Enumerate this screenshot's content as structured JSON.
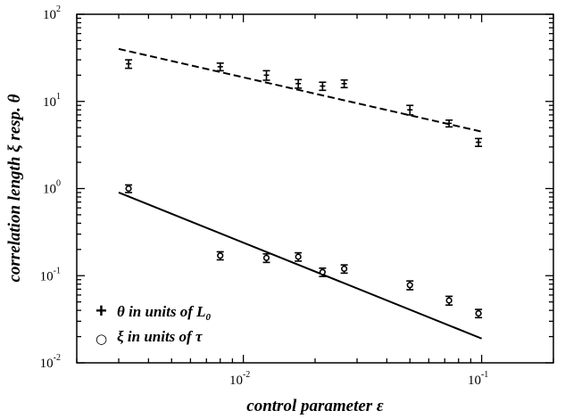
{
  "chart_data": {
    "type": "scatter",
    "xlabel": "control parameter ε",
    "ylabel": "correlation length ξ resp. θ",
    "xscale": "log",
    "yscale": "log",
    "xlim": [
      0.002,
      0.2
    ],
    "ylim": [
      0.01,
      100
    ],
    "x_ticks": [
      {
        "value": 0.01,
        "base": "10",
        "exp": "-2"
      },
      {
        "value": 0.1,
        "base": "10",
        "exp": "-1"
      }
    ],
    "y_ticks": [
      {
        "value": 0.01,
        "base": "10",
        "exp": "-2"
      },
      {
        "value": 0.1,
        "base": "10",
        "exp": "-1"
      },
      {
        "value": 1,
        "base": "10",
        "exp": "0"
      },
      {
        "value": 10,
        "base": "10",
        "exp": "1"
      },
      {
        "value": 100,
        "base": "10",
        "exp": "2"
      }
    ],
    "grid": false,
    "legend_position": "bottom-left",
    "series": [
      {
        "marker": "plus",
        "legend_symbol": "+",
        "legend_label": "θ in units of L",
        "legend_subscript": "0",
        "points": [
          {
            "x": 0.0033,
            "y": 27,
            "err": 3
          },
          {
            "x": 0.008,
            "y": 25,
            "err": 2.5
          },
          {
            "x": 0.0125,
            "y": 20,
            "err": 2.5
          },
          {
            "x": 0.017,
            "y": 16,
            "err": 1.8
          },
          {
            "x": 0.0215,
            "y": 15,
            "err": 1.6
          },
          {
            "x": 0.0265,
            "y": 16,
            "err": 1.6
          },
          {
            "x": 0.05,
            "y": 8,
            "err": 1
          },
          {
            "x": 0.073,
            "y": 5.6,
            "err": 0.5
          },
          {
            "x": 0.097,
            "y": 3.4,
            "err": 0.35
          }
        ],
        "fit": {
          "style": "dashed",
          "x": [
            0.003,
            0.1
          ],
          "y": [
            40,
            4.5
          ]
        }
      },
      {
        "marker": "circle",
        "legend_symbol": "○",
        "legend_label": "ξ in units of τ",
        "points": [
          {
            "x": 0.0033,
            "y": 1.0,
            "err": 0.1
          },
          {
            "x": 0.008,
            "y": 0.17,
            "err": 0.018
          },
          {
            "x": 0.0125,
            "y": 0.16,
            "err": 0.018
          },
          {
            "x": 0.017,
            "y": 0.165,
            "err": 0.018
          },
          {
            "x": 0.0215,
            "y": 0.11,
            "err": 0.012
          },
          {
            "x": 0.0265,
            "y": 0.12,
            "err": 0.013
          },
          {
            "x": 0.05,
            "y": 0.078,
            "err": 0.009
          },
          {
            "x": 0.073,
            "y": 0.052,
            "err": 0.006
          },
          {
            "x": 0.097,
            "y": 0.037,
            "err": 0.004
          }
        ],
        "fit": {
          "style": "solid",
          "x": [
            0.003,
            0.1
          ],
          "y": [
            0.9,
            0.019
          ]
        }
      }
    ]
  }
}
